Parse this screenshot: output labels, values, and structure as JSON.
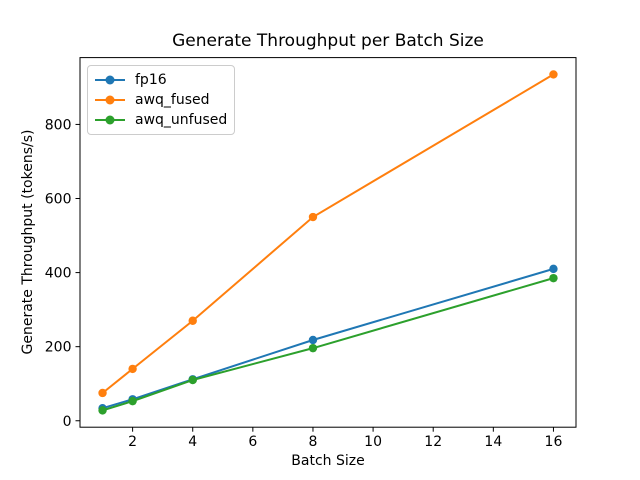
{
  "chart_data": {
    "type": "line",
    "title": "Generate Throughput per Batch Size",
    "xlabel": "Batch Size",
    "ylabel": "Generate Throughput (tokens/s)",
    "x": [
      1,
      2,
      4,
      8,
      16
    ],
    "series": [
      {
        "name": "fp16",
        "color": "#1f77b4",
        "values": [
          34,
          58,
          112,
          218,
          410
        ]
      },
      {
        "name": "awq_fused",
        "color": "#ff7f0e",
        "values": [
          75,
          140,
          270,
          550,
          935
        ]
      },
      {
        "name": "awq_unfused",
        "color": "#2ca02c",
        "values": [
          28,
          53,
          110,
          196,
          385
        ]
      }
    ],
    "xticks": [
      2,
      4,
      6,
      8,
      10,
      12,
      14,
      16
    ],
    "yticks": [
      0,
      200,
      400,
      600,
      800
    ],
    "xlim": [
      0.25,
      16.75
    ],
    "ylim": [
      -17.4,
      980.4
    ],
    "grid": false,
    "legend_position": "upper left",
    "marker": "o",
    "line_width": 2,
    "marker_radius": 4.2,
    "background": "#ffffff",
    "axis_color": "#000000"
  }
}
